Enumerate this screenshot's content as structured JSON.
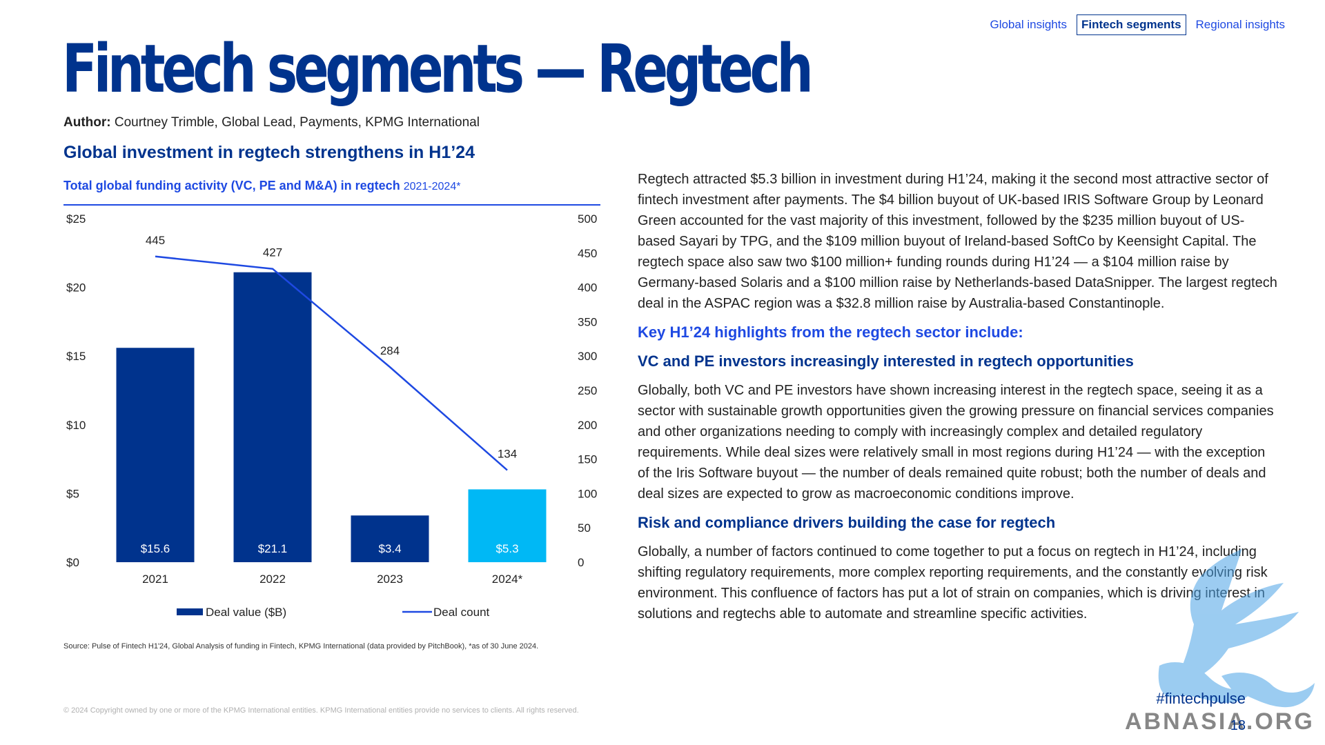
{
  "nav": {
    "tabs": [
      "Global insights",
      "Fintech segments",
      "Regional insights"
    ],
    "active": 1
  },
  "title": "Fintech segments — Regtech",
  "author": {
    "label": "Author:",
    "text": "Courtney Trimble, Global Lead, Payments, KPMG International"
  },
  "heading": "Global investment in regtech strengthens in H1’24",
  "chart_title": {
    "main": "Total global funding activity (VC, PE and M&A) in regtech",
    "sub": "2021-2024*"
  },
  "chart_data": {
    "type": "bar",
    "categories": [
      "2021",
      "2022",
      "2023",
      "2024*"
    ],
    "series": [
      {
        "name": "Deal value ($B)",
        "type": "bar",
        "axis": "left",
        "values": [
          15.6,
          21.1,
          3.4,
          5.3
        ],
        "labels": [
          "$15.6",
          "$21.1",
          "$3.4",
          "$5.3"
        ],
        "colors": [
          "#00338d",
          "#00338d",
          "#00338d",
          "#00b8f5"
        ]
      },
      {
        "name": "Deal count",
        "type": "line",
        "axis": "right",
        "values": [
          445,
          427,
          284,
          134
        ],
        "color": "#1e49e2"
      }
    ],
    "left_axis": {
      "ylim": [
        0,
        25
      ],
      "ticks": [
        "$0",
        "$5",
        "$10",
        "$15",
        "$20",
        "$25"
      ]
    },
    "right_axis": {
      "ylim": [
        0,
        500
      ],
      "ticks": [
        "0",
        "50",
        "100",
        "150",
        "200",
        "250",
        "300",
        "350",
        "400",
        "450",
        "500"
      ]
    },
    "legend": {
      "position": "bottom"
    },
    "grid": false
  },
  "source": "Source: Pulse of Fintech H1'24, Global Analysis of funding in Fintech, KPMG International (data provided by PitchBook), *as of 30 June 2024.",
  "copyright": "© 2024 Copyright owned by one or more of the KPMG International entities. KPMG International entities provide no services to clients. All rights reserved.",
  "body": {
    "intro": "Regtech attracted $5.3 billion in investment during H1’24, making it the second most attractive sector of fintech investment after payments. The $4 billion buyout of UK-based IRIS Software Group by Leonard Green accounted for the vast majority of this investment, followed by the $235 million buyout of US-based Sayari by TPG, and the $109 million buyout of Ireland-based SoftCo by Keensight Capital. The regtech space also saw two $100 million+ funding rounds during H1’24 — a $104 million raise by Germany-based Solaris and a $100 million raise by Netherlands-based DataSnipper. The largest regtech deal in the ASPAC region was a $32.8 million raise by Australia-based Constantinople.",
    "highlights": "Key H1’24 highlights from the regtech sector include:",
    "section1_title": "VC and PE investors increasingly interested in regtech opportunities",
    "section1_text": "Globally, both VC and PE investors have shown increasing interest in the regtech space, seeing it as a sector with sustainable growth opportunities given the growing pressure on financial services companies and other organizations needing to comply with increasingly complex and detailed regulatory requirements. While deal sizes were relatively small in most regions during H1’24 — with the exception of the Iris Software buyout — the number of deals remained quite robust; both the number of deals and deal sizes are expected to grow as macroeconomic conditions improve.",
    "section2_title": "Risk and compliance drivers building the case for regtech",
    "section2_text": "Globally, a number of factors continued to come together to put a focus on regtech in H1’24, including shifting regulatory requirements, more complex reporting requirements, and the constantly evolving risk environment. This confluence of factors has put a lot of strain on companies, which is driving interest in solutions and regtechs able to automate and streamline specific activities."
  },
  "hashtag": "#fintechpulse",
  "page_number": "18",
  "watermark": "ABNASIA.ORG"
}
